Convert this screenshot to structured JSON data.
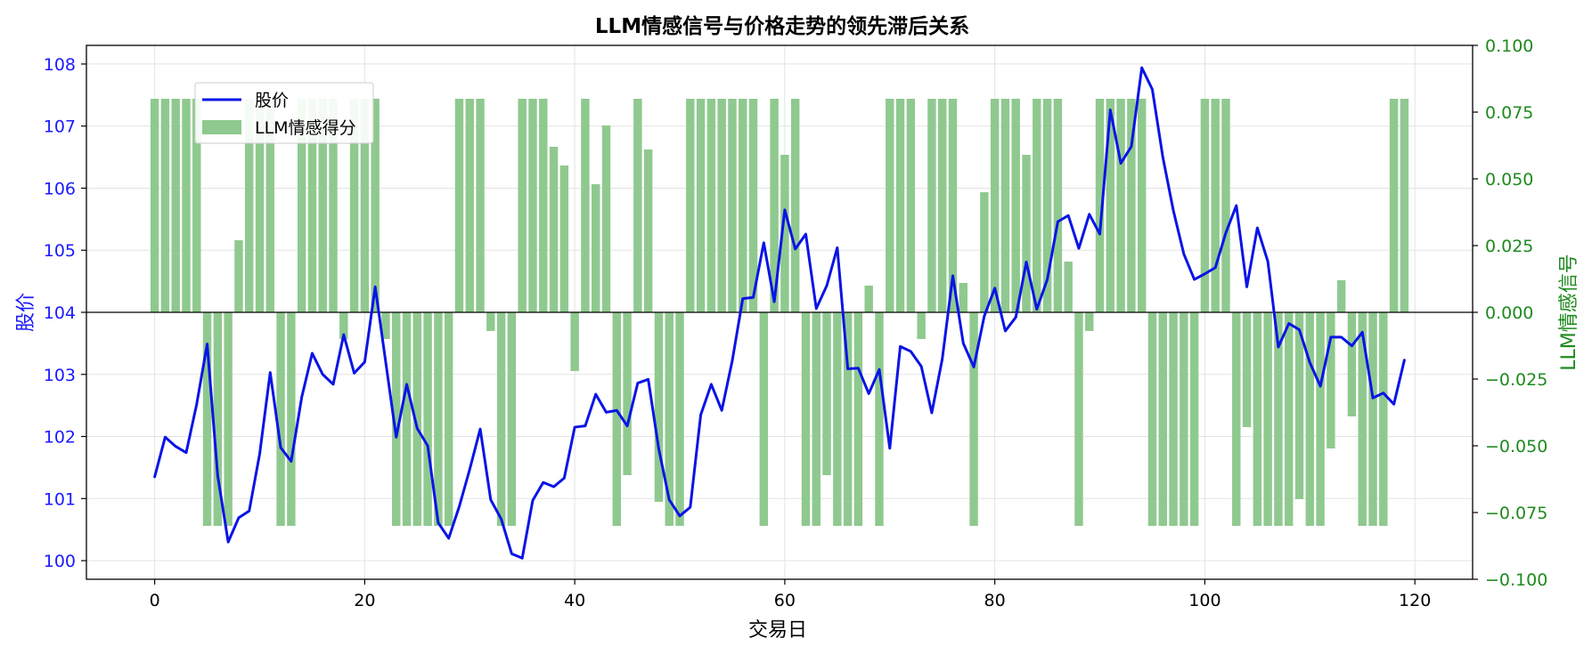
{
  "colors": {
    "price_line": "#0a14e6",
    "price_axis_text": "#1a1aff",
    "sentiment_bar": "#8fc98f",
    "sentiment_axis_text": "#1e8a1e",
    "grid": "#e3e3e3",
    "text": "#000000"
  },
  "chart_data": {
    "type": "line+bar",
    "title": "LLM情感信号与价格走势的领先滞后关系",
    "xlabel": "交易日",
    "ylabel_left": "股价",
    "ylabel_right": "LLM情感信号",
    "xlim": [
      -6.5,
      125.5
    ],
    "ylim_left": [
      99.7,
      108.3
    ],
    "ylim_right": [
      -0.1,
      0.1
    ],
    "x_ticks": [
      0,
      20,
      40,
      60,
      80,
      100,
      120
    ],
    "x_tick_labels": [
      "0",
      "20",
      "40",
      "60",
      "80",
      "100",
      "120"
    ],
    "y_left_ticks": [
      100,
      101,
      102,
      103,
      104,
      105,
      106,
      107,
      108
    ],
    "y_left_tick_labels": [
      "100",
      "101",
      "102",
      "103",
      "104",
      "105",
      "106",
      "107",
      "108"
    ],
    "y_right_ticks": [
      -0.1,
      -0.075,
      -0.05,
      -0.025,
      0,
      0.025,
      0.05,
      0.075,
      0.1
    ],
    "y_right_tick_labels": [
      "−0.100",
      "−0.075",
      "−0.050",
      "−0.025",
      "0.000",
      "0.025",
      "0.050",
      "0.075",
      "0.100"
    ],
    "grid": true,
    "legend": {
      "position": "upper-left",
      "entries": [
        "股价",
        "LLM情感得分"
      ]
    },
    "series": [
      {
        "name": "股价",
        "axis": "left",
        "kind": "line",
        "x": [
          0,
          1,
          2,
          3,
          4,
          5,
          6,
          7,
          8,
          9,
          10,
          11,
          12,
          13,
          14,
          15,
          16,
          17,
          18,
          19,
          20,
          21,
          22,
          23,
          24,
          25,
          26,
          27,
          28,
          29,
          30,
          31,
          32,
          33,
          34,
          35,
          36,
          37,
          38,
          39,
          40,
          41,
          42,
          43,
          44,
          45,
          46,
          47,
          48,
          49,
          50,
          51,
          52,
          53,
          54,
          55,
          56,
          57,
          58,
          59,
          60,
          61,
          62,
          63,
          64,
          65,
          66,
          67,
          68,
          69,
          70,
          71,
          72,
          73,
          74,
          75,
          76,
          77,
          78,
          79,
          80,
          81,
          82,
          83,
          84,
          85,
          86,
          87,
          88,
          89,
          90,
          91,
          92,
          93,
          94,
          95,
          96,
          97,
          98,
          99,
          100,
          101,
          102,
          103,
          104,
          105,
          106,
          107,
          108,
          109,
          110,
          111,
          112,
          113,
          114,
          115,
          116,
          117,
          118,
          119
        ],
        "values": [
          101.35,
          101.99,
          101.84,
          101.74,
          102.52,
          103.49,
          101.37,
          100.3,
          100.69,
          100.8,
          101.72,
          103.03,
          101.82,
          101.6,
          102.63,
          103.34,
          103.0,
          102.84,
          103.64,
          103.02,
          103.2,
          104.41,
          103.2,
          101.99,
          102.84,
          102.13,
          101.85,
          100.61,
          100.36,
          100.87,
          101.47,
          102.12,
          100.98,
          100.67,
          100.11,
          100.04,
          100.97,
          101.26,
          101.19,
          101.33,
          102.15,
          102.17,
          102.68,
          102.39,
          102.42,
          102.17,
          102.86,
          102.92,
          101.8,
          100.98,
          100.72,
          100.86,
          102.35,
          102.84,
          102.42,
          103.22,
          104.22,
          104.24,
          105.12,
          104.17,
          105.65,
          105.02,
          105.26,
          104.06,
          104.43,
          105.04,
          103.09,
          103.1,
          102.69,
          103.08,
          101.81,
          103.45,
          103.37,
          103.13,
          102.38,
          103.25,
          104.59,
          103.5,
          103.12,
          103.94,
          104.39,
          103.7,
          103.92,
          104.81,
          104.05,
          104.53,
          105.46,
          105.56,
          105.03,
          105.58,
          105.26,
          107.26,
          106.4,
          106.67,
          107.94,
          107.59,
          106.5,
          105.64,
          104.94,
          104.53,
          104.62,
          104.72,
          105.28,
          105.72,
          104.41,
          105.36,
          104.82,
          103.44,
          103.82,
          103.72,
          103.19,
          102.81,
          103.6,
          103.6,
          103.46,
          103.68,
          102.62,
          102.7,
          102.52,
          103.23
        ]
      },
      {
        "name": "LLM情感得分",
        "axis": "right",
        "kind": "bar",
        "x": [
          0,
          1,
          2,
          3,
          4,
          5,
          6,
          7,
          8,
          9,
          10,
          11,
          12,
          13,
          14,
          15,
          16,
          17,
          18,
          19,
          20,
          21,
          22,
          23,
          24,
          25,
          26,
          27,
          28,
          29,
          30,
          31,
          32,
          33,
          34,
          35,
          36,
          37,
          38,
          39,
          40,
          41,
          42,
          43,
          44,
          45,
          46,
          47,
          48,
          49,
          50,
          51,
          52,
          53,
          54,
          55,
          56,
          57,
          58,
          59,
          60,
          61,
          62,
          63,
          64,
          65,
          66,
          67,
          68,
          69,
          70,
          71,
          72,
          73,
          74,
          75,
          76,
          77,
          78,
          79,
          80,
          81,
          82,
          83,
          84,
          85,
          86,
          87,
          88,
          89,
          90,
          91,
          92,
          93,
          94,
          95,
          96,
          97,
          98,
          99,
          100,
          101,
          102,
          103,
          104,
          105,
          106,
          107,
          108,
          109,
          110,
          111,
          112,
          113,
          114,
          115,
          116,
          117,
          118,
          119
        ],
        "values": [
          0.08,
          0.08,
          0.08,
          0.08,
          0.08,
          -0.08,
          -0.08,
          -0.08,
          0.027,
          0.08,
          0.08,
          0.08,
          -0.08,
          -0.08,
          0.08,
          0.08,
          0.08,
          0.08,
          -0.01,
          0.08,
          0.08,
          0.08,
          -0.01,
          -0.08,
          -0.08,
          -0.08,
          -0.08,
          -0.08,
          -0.08,
          0.08,
          0.08,
          0.08,
          -0.007,
          -0.08,
          -0.08,
          0.08,
          0.08,
          0.08,
          0.062,
          0.055,
          -0.022,
          0.08,
          0.048,
          0.07,
          -0.08,
          -0.061,
          0.08,
          0.061,
          -0.071,
          -0.08,
          -0.08,
          0.08,
          0.08,
          0.08,
          0.08,
          0.08,
          0.08,
          0.08,
          -0.08,
          0.08,
          0.059,
          0.08,
          -0.08,
          -0.08,
          -0.061,
          -0.08,
          -0.08,
          -0.08,
          0.01,
          -0.08,
          0.08,
          0.08,
          0.08,
          -0.01,
          0.08,
          0.08,
          0.08,
          0.011,
          -0.08,
          0.045,
          0.08,
          0.08,
          0.08,
          0.059,
          0.08,
          0.08,
          0.08,
          0.019,
          -0.08,
          -0.007,
          0.08,
          0.08,
          0.08,
          0.08,
          0.08,
          -0.08,
          -0.08,
          -0.08,
          -0.08,
          -0.08,
          0.08,
          0.08,
          0.08,
          -0.08,
          -0.043,
          -0.08,
          -0.08,
          -0.08,
          -0.08,
          -0.07,
          -0.08,
          -0.08,
          -0.051,
          0.012,
          -0.039,
          -0.08,
          -0.08,
          -0.08,
          0.08,
          0.08
        ]
      }
    ]
  }
}
